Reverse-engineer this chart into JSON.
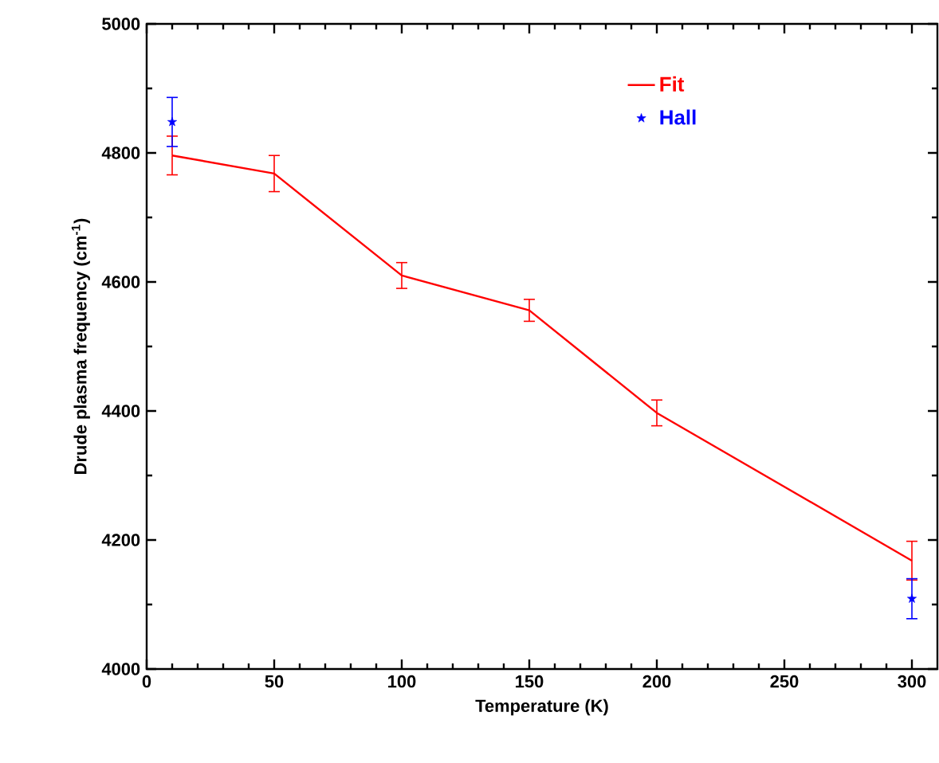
{
  "chart_data": {
    "type": "line",
    "xlabel": "Temperature (K)",
    "ylabel": "Drude plasma frequency (cm$^{-1}$)",
    "xlim": [
      0,
      310
    ],
    "ylim": [
      4000,
      5000
    ],
    "xticks": [
      0,
      50,
      100,
      150,
      200,
      250,
      300
    ],
    "yticks": [
      4000,
      4200,
      4400,
      4600,
      4800,
      5000
    ],
    "grid": false,
    "legend": "top right",
    "series": [
      {
        "name": "Fit",
        "type": "line",
        "color": "#ff0000",
        "marker": "none",
        "x": [
          10,
          50,
          100,
          150,
          200,
          300
        ],
        "values": [
          4796,
          4768,
          4610,
          4556,
          4397,
          4168
        ],
        "errors": [
          30,
          28,
          20,
          17,
          20,
          30
        ]
      },
      {
        "name": "Hall",
        "type": "scatter",
        "color": "#0000ff",
        "marker": "star",
        "x": [
          10,
          300
        ],
        "values": [
          4848,
          4109
        ],
        "errors": [
          38,
          31
        ]
      }
    ]
  }
}
